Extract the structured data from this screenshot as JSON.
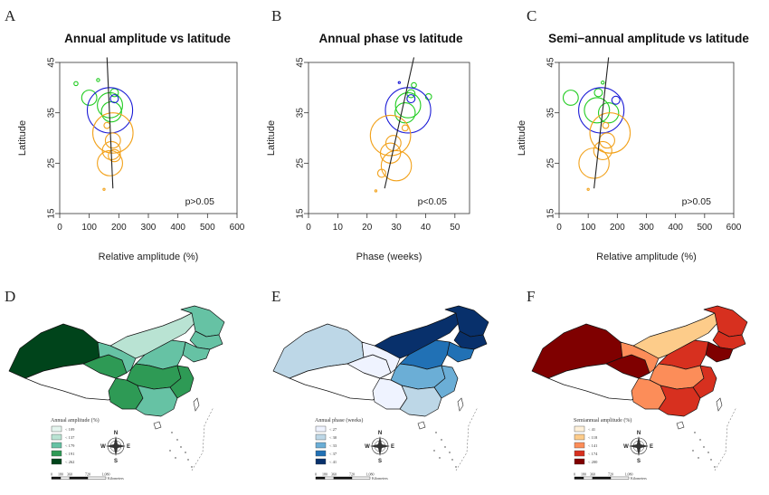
{
  "panel_labels": [
    "A",
    "B",
    "C",
    "D",
    "E",
    "F"
  ],
  "chart_data": [
    {
      "type": "scatter",
      "title": "Annual amplitude vs latitude",
      "xlabel": "Relative amplitude (%)",
      "ylabel": "Latitude",
      "xlim": [
        0,
        600
      ],
      "ylim": [
        15,
        45
      ],
      "xticks": [
        0,
        100,
        200,
        300,
        400,
        500,
        600
      ],
      "yticks": [
        15,
        25,
        35,
        45
      ],
      "annotation": "p>0.05",
      "trend": {
        "x1": 180,
        "y1": 20,
        "x2": 160,
        "y2": 46
      },
      "colors": {
        "north": "#22cc22",
        "inner": "#1a1ad6",
        "south": "#f2a21c"
      },
      "points": [
        {
          "x": 55,
          "y": 40.8,
          "r": 0.4,
          "group": "north"
        },
        {
          "x": 100,
          "y": 38.0,
          "r": 1.5,
          "group": "north"
        },
        {
          "x": 130,
          "y": 41.5,
          "r": 0.3,
          "group": "north"
        },
        {
          "x": 170,
          "y": 36.5,
          "r": 2.5,
          "group": "north"
        },
        {
          "x": 175,
          "y": 35.2,
          "r": 2.0,
          "group": "north"
        },
        {
          "x": 185,
          "y": 39.0,
          "r": 0.8,
          "group": "north"
        },
        {
          "x": 170,
          "y": 35.5,
          "r": 4.5,
          "group": "inner"
        },
        {
          "x": 185,
          "y": 37.8,
          "r": 0.8,
          "group": "inner"
        },
        {
          "x": 180,
          "y": 31.0,
          "r": 4.0,
          "group": "south"
        },
        {
          "x": 180,
          "y": 29.5,
          "r": 1.5,
          "group": "south"
        },
        {
          "x": 175,
          "y": 27.5,
          "r": 1.8,
          "group": "south"
        },
        {
          "x": 170,
          "y": 25.0,
          "r": 2.5,
          "group": "south"
        },
        {
          "x": 185,
          "y": 26.5,
          "r": 1.2,
          "group": "south"
        },
        {
          "x": 160,
          "y": 32.5,
          "r": 0.6,
          "group": "south"
        },
        {
          "x": 150,
          "y": 19.8,
          "r": 0.2,
          "group": "south"
        }
      ]
    },
    {
      "type": "scatter",
      "title": "Annual phase vs latitude",
      "xlabel": "Phase (weeks)",
      "ylabel": "Latitude",
      "xlim": [
        0,
        55
      ],
      "ylim": [
        15,
        45
      ],
      "xticks": [
        0,
        10,
        20,
        30,
        40,
        50
      ],
      "yticks": [
        15,
        25,
        35,
        45
      ],
      "annotation": "p<0.05",
      "trend": {
        "x1": 26,
        "y1": 20,
        "x2": 36,
        "y2": 46
      },
      "colors": {
        "north": "#22cc22",
        "inner": "#1a1ad6",
        "south": "#f2a21c"
      },
      "points": [
        {
          "x": 36,
          "y": 40.5,
          "r": 0.5,
          "group": "north"
        },
        {
          "x": 34,
          "y": 36.5,
          "r": 2.5,
          "group": "north"
        },
        {
          "x": 33,
          "y": 35.0,
          "r": 2.0,
          "group": "north"
        },
        {
          "x": 35,
          "y": 38.8,
          "r": 0.8,
          "group": "north"
        },
        {
          "x": 41,
          "y": 38.2,
          "r": 0.6,
          "group": "north"
        },
        {
          "x": 34,
          "y": 35.5,
          "r": 4.5,
          "group": "inner"
        },
        {
          "x": 35,
          "y": 37.8,
          "r": 0.8,
          "group": "inner"
        },
        {
          "x": 28,
          "y": 30.5,
          "r": 4.0,
          "group": "south"
        },
        {
          "x": 29,
          "y": 29.0,
          "r": 1.5,
          "group": "south"
        },
        {
          "x": 28,
          "y": 27.0,
          "r": 2.0,
          "group": "south"
        },
        {
          "x": 30,
          "y": 24.5,
          "r": 3.0,
          "group": "south"
        },
        {
          "x": 25,
          "y": 23.0,
          "r": 0.8,
          "group": "south"
        },
        {
          "x": 33,
          "y": 32.0,
          "r": 0.6,
          "group": "south"
        },
        {
          "x": 23,
          "y": 19.5,
          "r": 0.2,
          "group": "south"
        },
        {
          "x": 31,
          "y": 41.0,
          "r": 0.2,
          "group": "inner"
        }
      ]
    },
    {
      "type": "scatter",
      "title": "Semi−annual amplitude vs latitude",
      "xlabel": "Relative amplitude (%)",
      "ylabel": "Latitude",
      "xlim": [
        0,
        600
      ],
      "ylim": [
        15,
        45
      ],
      "xticks": [
        0,
        100,
        200,
        300,
        400,
        500,
        600
      ],
      "yticks": [
        15,
        25,
        35,
        45
      ],
      "annotation": "p>0.05",
      "trend": {
        "x1": 120,
        "y1": 20,
        "x2": 170,
        "y2": 46
      },
      "colors": {
        "north": "#22cc22",
        "inner": "#1a1ad6",
        "south": "#f2a21c"
      },
      "points": [
        {
          "x": 40,
          "y": 38.0,
          "r": 1.5,
          "group": "north"
        },
        {
          "x": 130,
          "y": 35.5,
          "r": 2.5,
          "group": "north"
        },
        {
          "x": 170,
          "y": 35.0,
          "r": 2.0,
          "group": "north"
        },
        {
          "x": 135,
          "y": 39.0,
          "r": 0.8,
          "group": "north"
        },
        {
          "x": 150,
          "y": 41.0,
          "r": 0.3,
          "group": "north"
        },
        {
          "x": 145,
          "y": 35.5,
          "r": 4.5,
          "group": "inner"
        },
        {
          "x": 195,
          "y": 37.5,
          "r": 0.8,
          "group": "inner"
        },
        {
          "x": 175,
          "y": 31.0,
          "r": 4.0,
          "group": "south"
        },
        {
          "x": 165,
          "y": 29.5,
          "r": 1.5,
          "group": "south"
        },
        {
          "x": 150,
          "y": 27.5,
          "r": 1.8,
          "group": "south"
        },
        {
          "x": 120,
          "y": 25.0,
          "r": 3.0,
          "group": "south"
        },
        {
          "x": 160,
          "y": 32.5,
          "r": 0.6,
          "group": "south"
        },
        {
          "x": 100,
          "y": 19.8,
          "r": 0.2,
          "group": "south"
        }
      ]
    }
  ],
  "maps": [
    {
      "legend_title": "Annual amplitude (%)",
      "classes": [
        "< 109",
        "< 137",
        "< 179",
        "< 191",
        "< 262"
      ],
      "colors": [
        "#e5f5ef",
        "#b9e3d3",
        "#66c2a4",
        "#2e9a55",
        "#00441b"
      ],
      "region_colors": {
        "xinjiang": 4,
        "tibet": -1,
        "qinghai": 3,
        "inner_mongolia": 1,
        "heilongjiang": 2,
        "jilin": 2,
        "liaoning": 2,
        "gansu": 2,
        "north_china": 2,
        "central": 3,
        "southwest": 3,
        "south": 2,
        "east": 3
      }
    },
    {
      "legend_title": "Annual phase (weeks)",
      "classes": [
        "< 27",
        "< 30",
        "< 33",
        "< 37",
        "< 41"
      ],
      "colors": [
        "#eff3ff",
        "#bdd7e7",
        "#6baed6",
        "#2171b5",
        "#08306b"
      ],
      "region_colors": {
        "xinjiang": 1,
        "tibet": -1,
        "qinghai": 0,
        "inner_mongolia": 4,
        "heilongjiang": 4,
        "jilin": 4,
        "liaoning": 3,
        "gansu": 0,
        "north_china": 3,
        "central": 2,
        "southwest": 0,
        "south": 1,
        "east": 2
      }
    },
    {
      "legend_title": "Semiannual amplitude (%)",
      "classes": [
        "< 41",
        "< 118",
        "< 141",
        "< 174",
        "< 200"
      ],
      "colors": [
        "#fef0d9",
        "#fdcc8a",
        "#fc8d59",
        "#d7301f",
        "#7f0000"
      ],
      "region_colors": {
        "xinjiang": 4,
        "tibet": -1,
        "qinghai": 4,
        "inner_mongolia": 1,
        "heilongjiang": 3,
        "jilin": 3,
        "liaoning": 4,
        "gansu": 2,
        "north_china": 3,
        "central": 2,
        "southwest": 2,
        "south": 3,
        "east": 3
      }
    }
  ],
  "compass": {
    "n": "N",
    "s": "S",
    "e": "E",
    "w": "W"
  },
  "scale": {
    "ticks": [
      "0",
      "180",
      "360",
      "720",
      "1,080"
    ],
    "unit": "Kilometers"
  }
}
